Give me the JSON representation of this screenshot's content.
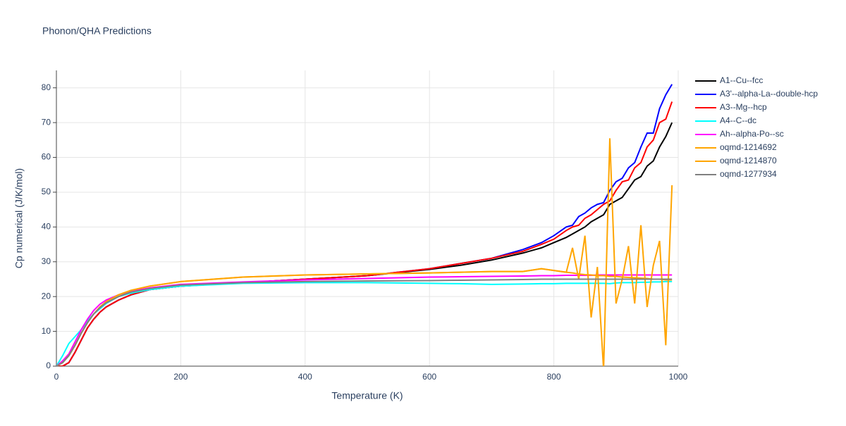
{
  "chart_data": {
    "type": "line",
    "title": "Phonon/QHA Predictions",
    "x_label": "Temperature (K)",
    "y_label": "Cp numerical (J/K/mol)",
    "xlim": [
      0,
      1000
    ],
    "ylim": [
      0,
      85
    ],
    "xticks": [
      0,
      200,
      400,
      600,
      800,
      1000
    ],
    "yticks": [
      0,
      10,
      20,
      30,
      40,
      50,
      60,
      70,
      80
    ],
    "grid": true,
    "legend": "right",
    "x": [
      0,
      10,
      20,
      30,
      40,
      50,
      60,
      70,
      80,
      100,
      120,
      150,
      200,
      300,
      400,
      500,
      600,
      650,
      700,
      750,
      780,
      800,
      820,
      830,
      840,
      850,
      860,
      870,
      880,
      890,
      900,
      910,
      920,
      930,
      940,
      950,
      960,
      970,
      980,
      990
    ],
    "series": [
      {
        "name": "A1--Cu--fcc",
        "color": "#000000",
        "values": [
          0,
          0,
          1,
          4,
          7.5,
          11,
          13.5,
          15.5,
          17,
          19,
          20.5,
          22,
          23,
          24,
          25,
          26,
          27.8,
          29,
          30.5,
          32.5,
          34,
          35.5,
          37,
          38,
          39,
          40,
          41.5,
          42.5,
          43.5,
          46.5,
          47.5,
          48.5,
          51,
          53.5,
          54.5,
          57.5,
          59,
          63,
          66,
          70
        ]
      },
      {
        "name": "A3'--alpha-La--double-hcp",
        "color": "#0000ff",
        "values": [
          0,
          0,
          1,
          4,
          7.5,
          11,
          13.5,
          15.5,
          17,
          19,
          20.5,
          22,
          23,
          24,
          25,
          26,
          28,
          29.5,
          31,
          33.5,
          35.5,
          37.5,
          40,
          40.5,
          43,
          44,
          45.5,
          46.5,
          47,
          50.5,
          53,
          54,
          57,
          58.5,
          63,
          67,
          67,
          74,
          78,
          81
        ]
      },
      {
        "name": "A3--Mg--hcp",
        "color": "#ff0000",
        "values": [
          0,
          0,
          1,
          4,
          7.5,
          11,
          13.5,
          15.5,
          17,
          19,
          20.5,
          22,
          23,
          24,
          25,
          26,
          28,
          29.5,
          31,
          33,
          35,
          36.5,
          39,
          40,
          40.5,
          42.5,
          43.5,
          45,
          46.5,
          47.5,
          50.5,
          53,
          53.5,
          57,
          58.5,
          63,
          65,
          70,
          71,
          76
        ]
      },
      {
        "name": "A4--C--dc",
        "color": "#00ffff",
        "values": [
          0,
          3,
          6.5,
          8.5,
          10.5,
          13,
          15,
          16.5,
          18,
          20,
          21,
          22,
          23,
          23.8,
          24,
          24,
          23.8,
          23.7,
          23.5,
          23.6,
          23.7,
          23.7,
          23.8,
          23.8,
          23.8,
          23.8,
          23.8,
          23.8,
          23.8,
          23.7,
          23.9,
          24,
          24,
          24,
          24.1,
          24.1,
          24.2,
          24.2,
          24.3,
          24.3
        ]
      },
      {
        "name": "Ah--alpha-Po--sc",
        "color": "#ff00ff",
        "values": [
          0,
          1.5,
          3.5,
          7,
          10.5,
          13.5,
          16,
          17.8,
          19,
          20.5,
          21.5,
          22.5,
          23.5,
          24.2,
          24.8,
          25.2,
          25.6,
          25.7,
          25.8,
          25.9,
          26,
          26,
          26.1,
          26.1,
          26.1,
          26.1,
          26.1,
          26.2,
          26.2,
          26.2,
          26.2,
          26.2,
          26.2,
          26.2,
          26.2,
          26.2,
          26.2,
          26.2,
          26.2,
          26.2
        ]
      },
      {
        "name": "oqmd-1214692",
        "color": "#ffa500",
        "values": [
          0,
          1,
          3,
          6,
          9.5,
          12.5,
          15,
          17,
          18.5,
          20.5,
          21.8,
          23,
          24.3,
          25.6,
          26.2,
          26.5,
          26.8,
          27,
          27.2,
          27.2,
          28,
          27.5,
          27,
          26.8,
          26.5,
          26.3,
          26.2,
          26,
          26,
          25.8,
          25.8,
          25.6,
          25.5,
          25.4,
          25.3,
          25.2,
          25,
          25,
          24.8,
          24.8
        ]
      },
      {
        "name": "oqmd-1214870",
        "color": "#ffa500",
        "values": [
          0,
          1,
          3,
          6,
          9.5,
          12.5,
          15,
          17,
          18.5,
          20.5,
          21.8,
          23,
          24.3,
          25.6,
          26.2,
          26.5,
          26.8,
          27,
          27.2,
          27.2,
          28,
          27.5,
          27,
          34,
          25,
          37.5,
          14,
          28.5,
          -1,
          65.5,
          18,
          25,
          34.5,
          18,
          40.5,
          17,
          29,
          36,
          6,
          52
        ]
      },
      {
        "name": "oqmd-1277934",
        "color": "#808080",
        "values": [
          0,
          1,
          3,
          6,
          9.5,
          12.5,
          15,
          16.8,
          18.2,
          20,
          21.3,
          22.3,
          23.3,
          24,
          24.3,
          24.5,
          24.6,
          24.7,
          24.8,
          24.9,
          25,
          25,
          25,
          25,
          25,
          25,
          25,
          25,
          25,
          25,
          25,
          25,
          25,
          25,
          25,
          25,
          25,
          25,
          25,
          25
        ]
      }
    ]
  }
}
